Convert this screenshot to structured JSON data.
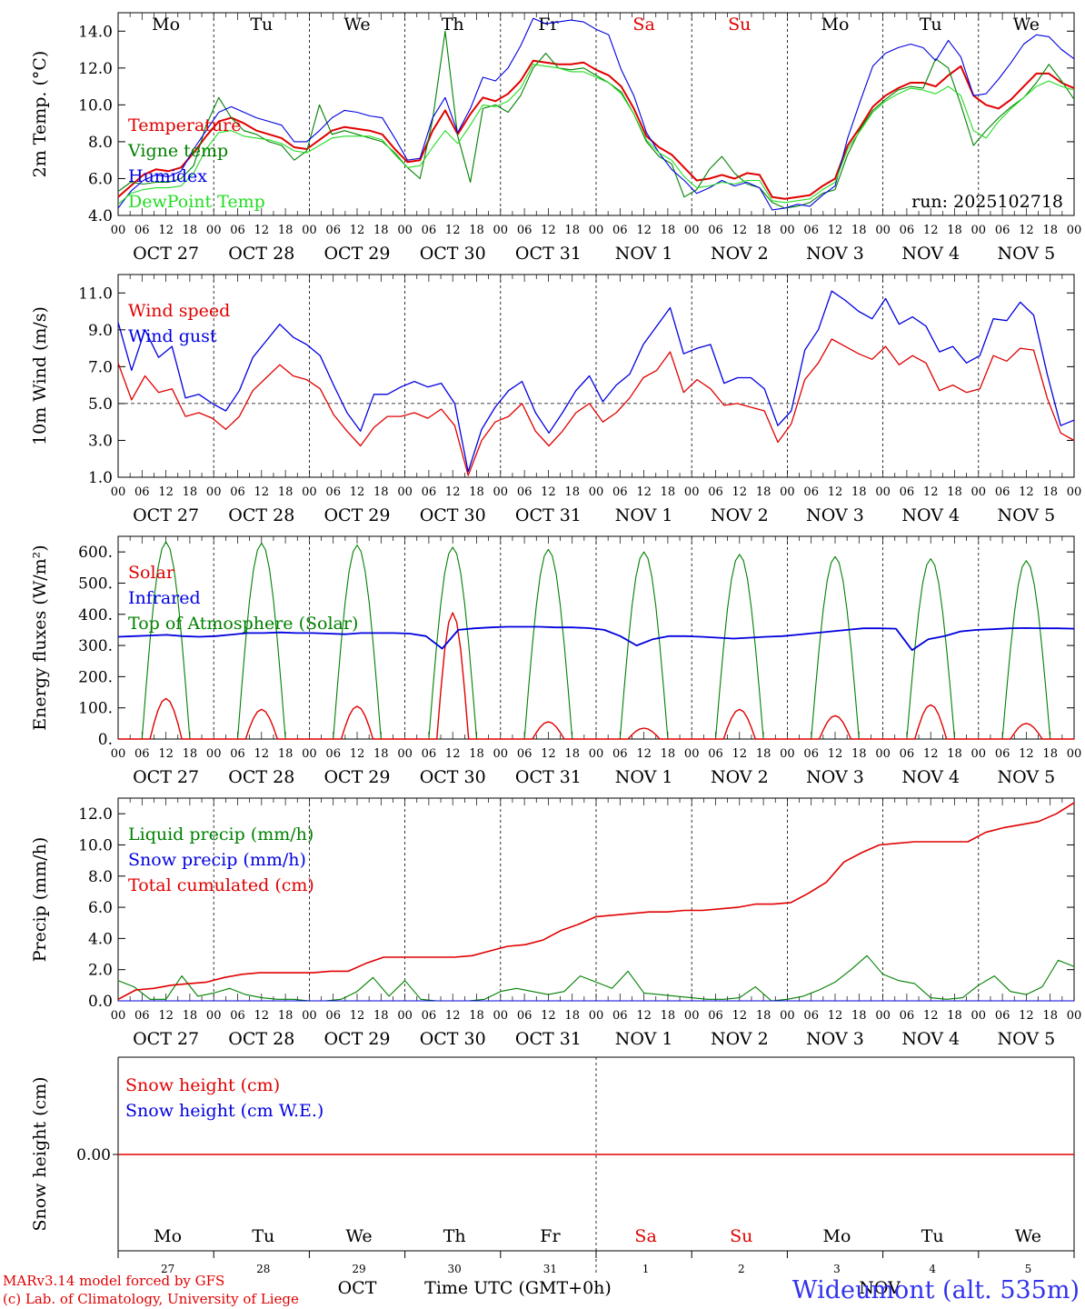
{
  "chart_data": [
    {
      "type": "line",
      "ylabel": "2m Temp. (°C)",
      "ylim": [
        4,
        15
      ],
      "yticks": [
        "4.0",
        "6.0",
        "8.0",
        "10.0",
        "12.0",
        "14.0"
      ],
      "run_label": "run: 2025102718",
      "days": [
        "Mo",
        "Tu",
        "We",
        "Th",
        "Fr",
        "Sa",
        "Su",
        "Mo",
        "Tu",
        "We"
      ],
      "day_colors": [
        "#000000",
        "#000000",
        "#000000",
        "#000000",
        "#000000",
        "#e00000",
        "#e00000",
        "#000000",
        "#000000",
        "#000000"
      ],
      "hours_per_point": 6,
      "series": [
        {
          "name": "Temperature",
          "color": "#e00000",
          "values": [
            5.0,
            5.6,
            6.2,
            6.5,
            6.4,
            6.6,
            7.4,
            8.3,
            9.1,
            9.3,
            9.0,
            8.6,
            8.4,
            8.2,
            7.7,
            7.6,
            8.1,
            8.6,
            8.8,
            8.7,
            8.6,
            8.4,
            7.6,
            6.9,
            7.0,
            8.6,
            9.7,
            8.4,
            9.5,
            10.4,
            10.2,
            10.6,
            11.3,
            12.4,
            12.3,
            12.2,
            12.2,
            12.3,
            11.9,
            11.6,
            11.0,
            9.8,
            8.3,
            7.7,
            7.3,
            6.6,
            5.9,
            6.0,
            6.2,
            6.0,
            6.3,
            6.2,
            5.0,
            4.9,
            5.0,
            5.1,
            5.6,
            6.0,
            7.8,
            8.8,
            9.9,
            10.5,
            10.9,
            11.2,
            11.2,
            11.0,
            11.6,
            12.1,
            10.5,
            10.0,
            9.8,
            10.3,
            11.0,
            11.7,
            11.7,
            11.2,
            10.9
          ]
        },
        {
          "name": "Vigne temp",
          "color": "#008000",
          "values": [
            5.3,
            5.8,
            5.7,
            5.8,
            5.8,
            6.0,
            6.7,
            8.9,
            10.4,
            9.3,
            8.6,
            8.4,
            8.0,
            7.8,
            7.0,
            7.5,
            10.0,
            8.4,
            8.6,
            8.4,
            8.2,
            8.0,
            7.4,
            6.6,
            6.0,
            9.2,
            14.0,
            8.3,
            5.8,
            9.8,
            10.0,
            9.6,
            10.5,
            12.0,
            12.8,
            12.0,
            11.9,
            12.0,
            11.6,
            11.2,
            10.7,
            9.5,
            8.0,
            7.2,
            6.8,
            5.0,
            5.4,
            6.5,
            7.2,
            6.3,
            5.7,
            5.5,
            4.7,
            4.4,
            4.5,
            4.7,
            5.2,
            5.4,
            7.3,
            8.7,
            9.7,
            10.3,
            10.8,
            11.0,
            10.9,
            12.5,
            12.0,
            10.0,
            7.8,
            8.6,
            9.3,
            9.9,
            10.4,
            11.2,
            12.2,
            11.3,
            10.3
          ]
        },
        {
          "name": "Humidex",
          "color": "#0000e0",
          "values": [
            4.4,
            5.3,
            5.9,
            6.2,
            6.1,
            6.4,
            7.6,
            8.6,
            9.6,
            9.9,
            9.6,
            9.3,
            9.1,
            8.9,
            8.0,
            8.0,
            8.6,
            9.3,
            9.7,
            9.6,
            9.4,
            9.3,
            8.2,
            7.0,
            7.1,
            9.3,
            10.4,
            8.5,
            9.8,
            11.5,
            11.3,
            12.0,
            13.2,
            14.7,
            14.4,
            14.5,
            14.6,
            14.5,
            14.1,
            13.8,
            11.9,
            10.5,
            8.5,
            7.4,
            6.5,
            5.9,
            5.2,
            5.5,
            5.9,
            5.6,
            5.8,
            5.5,
            4.3,
            4.4,
            4.6,
            4.5,
            5.1,
            5.6,
            8.2,
            10.2,
            12.1,
            12.8,
            13.1,
            13.3,
            13.1,
            12.4,
            13.5,
            12.6,
            10.5,
            10.6,
            11.4,
            12.3,
            13.3,
            13.8,
            13.7,
            13.0,
            12.5
          ]
        },
        {
          "name": "DewPoint Temp",
          "color": "#22dd22",
          "values": [
            4.6,
            5.2,
            5.4,
            5.5,
            5.5,
            5.6,
            6.3,
            7.6,
            8.5,
            8.6,
            8.3,
            8.2,
            8.1,
            7.9,
            7.5,
            7.4,
            7.8,
            8.2,
            8.3,
            8.3,
            8.3,
            8.1,
            7.3,
            6.6,
            6.7,
            7.7,
            8.6,
            7.9,
            8.9,
            10.0,
            9.9,
            10.2,
            10.9,
            12.2,
            12.1,
            12.0,
            11.8,
            11.8,
            11.5,
            11.2,
            10.6,
            9.5,
            8.1,
            7.4,
            7.0,
            6.1,
            5.5,
            5.6,
            5.8,
            5.7,
            5.9,
            5.9,
            4.8,
            4.7,
            4.8,
            4.9,
            5.4,
            5.8,
            7.6,
            8.6,
            9.6,
            10.2,
            10.6,
            10.9,
            10.8,
            10.6,
            11.0,
            10.5,
            8.6,
            8.2,
            9.1,
            9.8,
            10.4,
            11.0,
            11.3,
            11.0,
            10.8
          ]
        }
      ]
    },
    {
      "type": "line",
      "ylabel": "10m Wind (m/s)",
      "ylim": [
        1,
        12
      ],
      "yticks": [
        "1.0",
        "3.0",
        "5.0",
        "7.0",
        "9.0",
        "11.0"
      ],
      "reference_line": 5.0,
      "hours_per_point": 6,
      "series": [
        {
          "name": "Wind speed",
          "color": "#e00000",
          "values": [
            7.2,
            5.2,
            6.5,
            5.6,
            5.8,
            4.3,
            4.5,
            4.2,
            3.6,
            4.3,
            5.7,
            6.4,
            7.1,
            6.5,
            6.3,
            5.8,
            4.4,
            3.5,
            2.7,
            3.7,
            4.3,
            4.3,
            4.5,
            4.2,
            4.7,
            3.8,
            1.1,
            3.0,
            4.0,
            4.3,
            5.0,
            3.5,
            2.7,
            3.5,
            4.5,
            5.0,
            4.0,
            4.5,
            5.3,
            6.4,
            6.8,
            7.8,
            5.6,
            6.3,
            5.8,
            4.9,
            5.0,
            4.8,
            4.6,
            2.9,
            3.9,
            6.3,
            7.2,
            8.5,
            8.1,
            7.7,
            7.4,
            8.1,
            7.1,
            7.6,
            7.2,
            5.7,
            6.0,
            5.6,
            5.8,
            7.6,
            7.3,
            8.0,
            7.9,
            5.3,
            3.4,
            3.0
          ]
        },
        {
          "name": "Wind gust",
          "color": "#0000e0",
          "values": [
            9.4,
            6.8,
            9.0,
            7.5,
            8.1,
            5.3,
            5.5,
            5.0,
            4.6,
            5.7,
            7.5,
            8.4,
            9.3,
            8.6,
            8.2,
            7.6,
            6.0,
            4.5,
            3.5,
            5.5,
            5.5,
            5.9,
            6.2,
            5.9,
            6.1,
            5.0,
            1.3,
            3.6,
            4.8,
            5.7,
            6.2,
            4.5,
            3.4,
            4.5,
            5.7,
            6.5,
            5.1,
            6.0,
            6.6,
            8.2,
            9.2,
            10.2,
            7.7,
            8.0,
            8.2,
            6.1,
            6.4,
            6.4,
            5.8,
            3.8,
            4.6,
            7.9,
            9.0,
            11.1,
            10.6,
            10.0,
            9.6,
            10.7,
            9.3,
            9.7,
            9.2,
            7.8,
            8.1,
            7.2,
            7.6,
            9.6,
            9.5,
            10.5,
            9.8,
            6.6,
            3.8,
            4.1
          ]
        }
      ]
    },
    {
      "type": "line",
      "ylabel": "Energy fluxes (W/m²)",
      "ylim": [
        0,
        650
      ],
      "yticks": [
        "0.",
        "100.",
        "200.",
        "300.",
        "400.",
        "500.",
        "600."
      ],
      "series_note": "daily diurnal cycles, values per day (peak W/m2)",
      "series": [
        {
          "name": "Solar",
          "color": "#e00000",
          "daily_peaks": [
            130,
            95,
            105,
            405,
            55,
            35,
            95,
            75,
            110,
            50
          ]
        },
        {
          "name": "Infrared",
          "color": "#0000e0",
          "values": [
            328,
            330,
            332,
            334,
            330,
            328,
            330,
            335,
            340,
            340,
            342,
            340,
            340,
            338,
            336,
            340,
            340,
            340,
            338,
            330,
            290,
            350,
            355,
            358,
            360,
            360,
            360,
            358,
            358,
            356,
            350,
            330,
            300,
            320,
            330,
            330,
            328,
            325,
            322,
            325,
            328,
            330,
            335,
            340,
            345,
            350,
            355,
            355,
            354,
            285,
            320,
            330,
            345,
            350,
            352,
            355,
            356,
            355,
            355,
            354
          ]
        },
        {
          "name": "Top of Atmosphere (Solar)",
          "color": "#008000",
          "daily_peaks": [
            632,
            628,
            622,
            615,
            608,
            600,
            592,
            585,
            578,
            572
          ]
        }
      ]
    },
    {
      "type": "line",
      "ylabel": "Precip (mm/h)",
      "ylim": [
        0,
        13
      ],
      "yticks": [
        "0.0",
        "2.0",
        "4.0",
        "6.0",
        "8.0",
        "10.0",
        "12.0"
      ],
      "hours_per_point": 6,
      "series": [
        {
          "name": "Liquid precip (mm/h)",
          "color": "#008000",
          "values": [
            1.3,
            0.9,
            0.1,
            0.1,
            1.6,
            0.3,
            0.5,
            0.8,
            0.4,
            0.2,
            0.1,
            0.1,
            0.0,
            0.0,
            0.1,
            0.6,
            1.5,
            0.3,
            1.3,
            0.1,
            0.0,
            0.0,
            0.0,
            0.1,
            0.6,
            0.8,
            0.6,
            0.4,
            0.6,
            1.6,
            1.2,
            0.8,
            1.9,
            0.5,
            0.4,
            0.3,
            0.2,
            0.1,
            0.1,
            0.2,
            0.9,
            0.0,
            0.1,
            0.3,
            0.7,
            1.2,
            2.0,
            2.9,
            1.7,
            1.3,
            1.1,
            0.2,
            0.1,
            0.2,
            1.0,
            1.6,
            0.6,
            0.4,
            0.9,
            2.6,
            2.2
          ]
        },
        {
          "name": "Snow precip (mm/h)",
          "color": "#0000e0",
          "values": [
            0,
            0,
            0,
            0,
            0,
            0,
            0,
            0,
            0,
            0,
            0,
            0,
            0,
            0,
            0,
            0,
            0,
            0,
            0,
            0,
            0,
            0,
            0,
            0,
            0,
            0,
            0,
            0,
            0,
            0,
            0,
            0,
            0,
            0,
            0,
            0,
            0,
            0,
            0,
            0,
            0,
            0,
            0,
            0,
            0,
            0,
            0,
            0,
            0,
            0,
            0,
            0,
            0,
            0,
            0,
            0,
            0,
            0,
            0,
            0,
            0
          ]
        },
        {
          "name": "Total cumulated (cm)",
          "color": "#e00000",
          "values": [
            0.1,
            0.7,
            0.8,
            1.0,
            1.1,
            1.2,
            1.5,
            1.7,
            1.8,
            1.8,
            1.8,
            1.8,
            1.9,
            1.9,
            2.4,
            2.8,
            2.8,
            2.8,
            2.8,
            2.8,
            2.9,
            3.2,
            3.5,
            3.6,
            3.9,
            4.5,
            4.9,
            5.4,
            5.5,
            5.6,
            5.7,
            5.7,
            5.8,
            5.8,
            5.9,
            6.0,
            6.2,
            6.2,
            6.3,
            6.9,
            7.6,
            8.9,
            9.5,
            10.0,
            10.1,
            10.2,
            10.2,
            10.2,
            10.2,
            10.8,
            11.1,
            11.3,
            11.5,
            12.0,
            12.7
          ]
        }
      ]
    },
    {
      "type": "line",
      "ylabel": "Snow height (cm)",
      "ytick": "0.00",
      "series": [
        {
          "name": "Snow height (cm)",
          "color": "#e00000",
          "values": [
            0,
            0
          ]
        },
        {
          "name": "Snow height (cm W.E.)",
          "color": "#0000e0",
          "values": [
            0,
            0
          ]
        }
      ]
    }
  ],
  "date_labels": [
    "OCT 27",
    "OCT 28",
    "OCT 29",
    "OCT 30",
    "OCT 31",
    "NOV  1",
    "NOV  2",
    "NOV  3",
    "NOV  4",
    "NOV  5"
  ],
  "hour_labels": [
    "00",
    "06",
    "12",
    "18"
  ],
  "bottom_day_numbers": [
    "27",
    "28",
    "29",
    "30",
    "31",
    "1",
    "2",
    "3",
    "4",
    "5"
  ],
  "footer": {
    "month_left": "OCT",
    "month_right": "NOV",
    "axis_title": "Time UTC (GMT+0h)",
    "credit_line1": "MARv3.14 model forced by GFS",
    "credit_line2": "(c) Lab. of Climatology, University of Liege",
    "station": "Wideumont (alt. 535m)"
  }
}
